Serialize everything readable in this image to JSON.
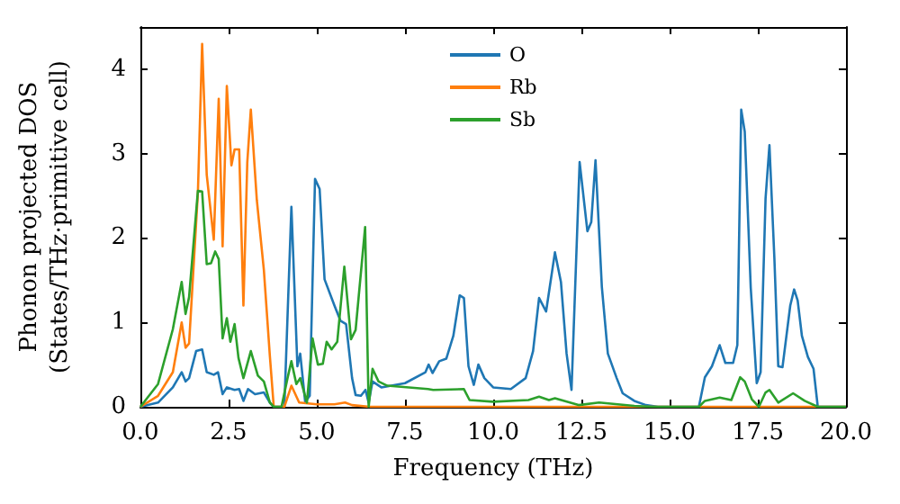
{
  "chart_data": {
    "type": "line",
    "xlabel": "Frequency (THz)",
    "ylabel": "Phonon projected DOS\n(States/THz·primitive cell)",
    "xlim": [
      0,
      20
    ],
    "ylim": [
      0,
      4.5
    ],
    "xticks": [
      {
        "value": 0,
        "label": "0.0"
      },
      {
        "value": 2.5,
        "label": "2.5"
      },
      {
        "value": 5,
        "label": "5.0"
      },
      {
        "value": 7.5,
        "label": "7.5"
      },
      {
        "value": 10,
        "label": "10.0"
      },
      {
        "value": 12.5,
        "label": "12.5"
      },
      {
        "value": 15,
        "label": "15.0"
      },
      {
        "value": 17.5,
        "label": "17.5"
      },
      {
        "value": 20,
        "label": "20.0"
      }
    ],
    "yticks": [
      0,
      1,
      2,
      3,
      4
    ],
    "grid": false,
    "legend": "top",
    "marker": "none",
    "line_style": "solid",
    "series": [
      {
        "name": "O",
        "color": "#1f77b4",
        "x": [
          0,
          0.5,
          0.92,
          1.17,
          1.28,
          1.38,
          1.58,
          1.75,
          1.88,
          2.08,
          2.2,
          2.33,
          2.45,
          2.67,
          2.8,
          2.92,
          3.05,
          3.25,
          3.5,
          3.67,
          3.78,
          4.08,
          4.28,
          4.45,
          4.53,
          4.67,
          4.8,
          4.95,
          5.08,
          5.22,
          5.5,
          5.67,
          5.83,
          6.0,
          6.1,
          6.25,
          6.38,
          6.47,
          6.58,
          6.83,
          7.5,
          8.08,
          8.17,
          8.28,
          8.47,
          8.67,
          8.87,
          9.05,
          9.17,
          9.3,
          9.45,
          9.58,
          9.75,
          10,
          10.5,
          10.92,
          11.13,
          11.3,
          11.5,
          11.75,
          11.92,
          12.08,
          12.22,
          12.45,
          12.67,
          12.78,
          12.9,
          13.08,
          13.25,
          13.5,
          13.67,
          14.0,
          14.33,
          14.67,
          15.83,
          16.0,
          16.2,
          16.42,
          16.58,
          16.8,
          16.92,
          17.03,
          17.13,
          17.3,
          17.47,
          17.58,
          17.72,
          17.83,
          17.97,
          18.08,
          18.2,
          18.42,
          18.53,
          18.63,
          18.75,
          18.92,
          19.08,
          19.2,
          20
        ],
        "values": [
          0,
          0.05,
          0.23,
          0.41,
          0.3,
          0.34,
          0.66,
          0.68,
          0.41,
          0.38,
          0.41,
          0.15,
          0.23,
          0.2,
          0.21,
          0.07,
          0.21,
          0.15,
          0.17,
          0.05,
          0,
          0,
          2.37,
          0.48,
          0.63,
          0.06,
          0.13,
          2.7,
          2.58,
          1.51,
          1.2,
          1.02,
          0.98,
          0.34,
          0.14,
          0.13,
          0.2,
          0.05,
          0.3,
          0.23,
          0.28,
          0.41,
          0.5,
          0.4,
          0.54,
          0.57,
          0.84,
          1.32,
          1.29,
          0.48,
          0.26,
          0.5,
          0.34,
          0.23,
          0.21,
          0.34,
          0.66,
          1.29,
          1.13,
          1.83,
          1.48,
          0.63,
          0.2,
          2.9,
          2.08,
          2.19,
          2.92,
          1.42,
          0.63,
          0.34,
          0.16,
          0.07,
          0.02,
          0,
          0,
          0.35,
          0.48,
          0.73,
          0.52,
          0.52,
          0.73,
          3.52,
          3.26,
          1.41,
          0.28,
          0.41,
          2.47,
          3.1,
          1.76,
          0.48,
          0.47,
          1.2,
          1.39,
          1.26,
          0.84,
          0.59,
          0.45,
          0,
          0
        ]
      },
      {
        "name": "Rb",
        "color": "#ff7f0e",
        "x": [
          0,
          0.5,
          0.92,
          1.17,
          1.28,
          1.38,
          1.63,
          1.75,
          1.88,
          2.08,
          2.22,
          2.33,
          2.45,
          2.58,
          2.67,
          2.8,
          2.92,
          3.03,
          3.13,
          3.3,
          3.5,
          3.67,
          3.78,
          4.08,
          4.28,
          4.5,
          5.0,
          5.5,
          5.8,
          6.0,
          6.5,
          20
        ],
        "values": [
          0,
          0.13,
          0.41,
          1.0,
          0.7,
          0.75,
          2.54,
          4.3,
          2.75,
          1.98,
          3.65,
          1.9,
          3.8,
          2.86,
          3.05,
          3.05,
          1.2,
          2.9,
          3.52,
          2.45,
          1.62,
          0.6,
          0,
          0,
          0.25,
          0.05,
          0.03,
          0.03,
          0.05,
          0.02,
          0,
          0
        ]
      },
      {
        "name": "Sb",
        "color": "#2ca02c",
        "x": [
          0,
          0.5,
          0.92,
          1.17,
          1.28,
          1.38,
          1.63,
          1.75,
          1.88,
          2.0,
          2.12,
          2.22,
          2.33,
          2.45,
          2.55,
          2.67,
          2.78,
          2.92,
          3.13,
          3.33,
          3.5,
          3.67,
          3.78,
          4.0,
          4.17,
          4.28,
          4.42,
          4.53,
          4.72,
          4.88,
          5.03,
          5.17,
          5.28,
          5.42,
          5.58,
          5.78,
          5.97,
          6.1,
          6.37,
          6.47,
          6.58,
          6.75,
          7.0,
          8.15,
          8.3,
          9.17,
          9.33,
          10,
          11,
          11.3,
          11.58,
          11.75,
          12.42,
          13,
          14,
          14.5,
          15.83,
          16.0,
          16.42,
          16.75,
          17.0,
          17.13,
          17.33,
          17.53,
          17.72,
          17.83,
          18.08,
          18.5,
          18.83,
          19.2,
          20
        ],
        "values": [
          0,
          0.27,
          0.92,
          1.48,
          1.1,
          1.3,
          2.56,
          2.55,
          1.69,
          1.7,
          1.84,
          1.75,
          0.81,
          1.05,
          0.77,
          0.98,
          0.58,
          0.34,
          0.66,
          0.37,
          0.3,
          0.05,
          0,
          0,
          0.34,
          0.54,
          0.27,
          0.34,
          0.05,
          0.81,
          0.5,
          0.51,
          0.77,
          0.68,
          0.77,
          1.66,
          0.8,
          0.91,
          2.13,
          0,
          0.45,
          0.3,
          0.25,
          0.21,
          0.2,
          0.21,
          0.08,
          0.06,
          0.08,
          0.12,
          0.08,
          0.1,
          0.02,
          0.05,
          0.01,
          0,
          0,
          0.07,
          0.11,
          0.08,
          0.35,
          0.3,
          0.09,
          0,
          0.17,
          0.2,
          0.05,
          0.16,
          0.07,
          0,
          0
        ]
      }
    ]
  }
}
